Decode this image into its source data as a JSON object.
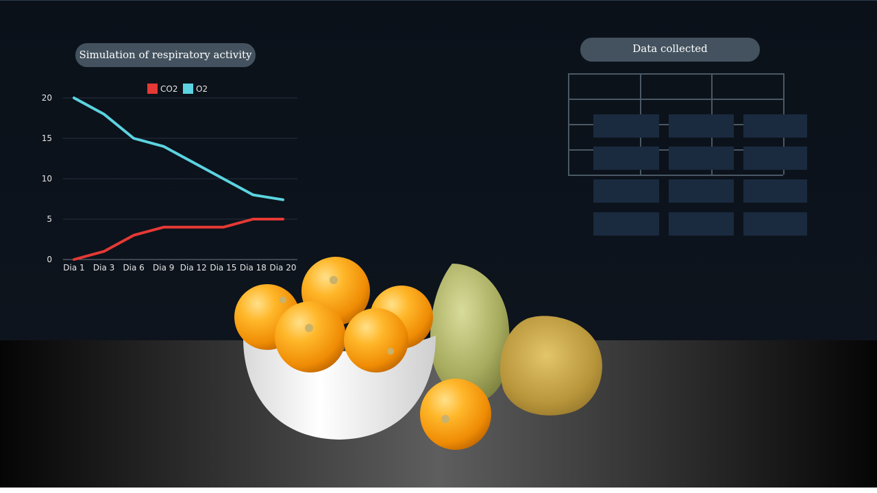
{
  "slide": {
    "chart_title": "Simulation of respiratory activity",
    "table_title": "Data collected"
  },
  "chart_data": {
    "type": "line",
    "x": [
      "Dia 1",
      "Dia 3",
      "Dia 6",
      "Dia 9",
      "Dia 12",
      "Dia 15",
      "Dia 18",
      "Dia 20"
    ],
    "series": [
      {
        "name": "CO2",
        "color": "#e53935",
        "values": [
          0,
          1,
          3,
          4,
          4,
          4,
          5,
          5
        ]
      },
      {
        "name": "O2",
        "color": "#5cd3e0",
        "values": [
          20,
          18,
          15,
          14,
          12,
          10,
          8,
          7.4
        ]
      }
    ],
    "yticks": [
      0,
      5,
      10,
      15,
      20
    ],
    "ylim": [
      0,
      20
    ],
    "grid": true,
    "legend": "top-center"
  },
  "table": {
    "rows": 4,
    "cols": 3,
    "overlay_rows": 4,
    "overlay_cols": 3
  },
  "image": {
    "subject": "bowl of golden berries (physalis) with husks",
    "colors": {
      "fruit": "#f5a623",
      "husk": "#9aa65a",
      "bowl": "#f2f2f2"
    }
  }
}
